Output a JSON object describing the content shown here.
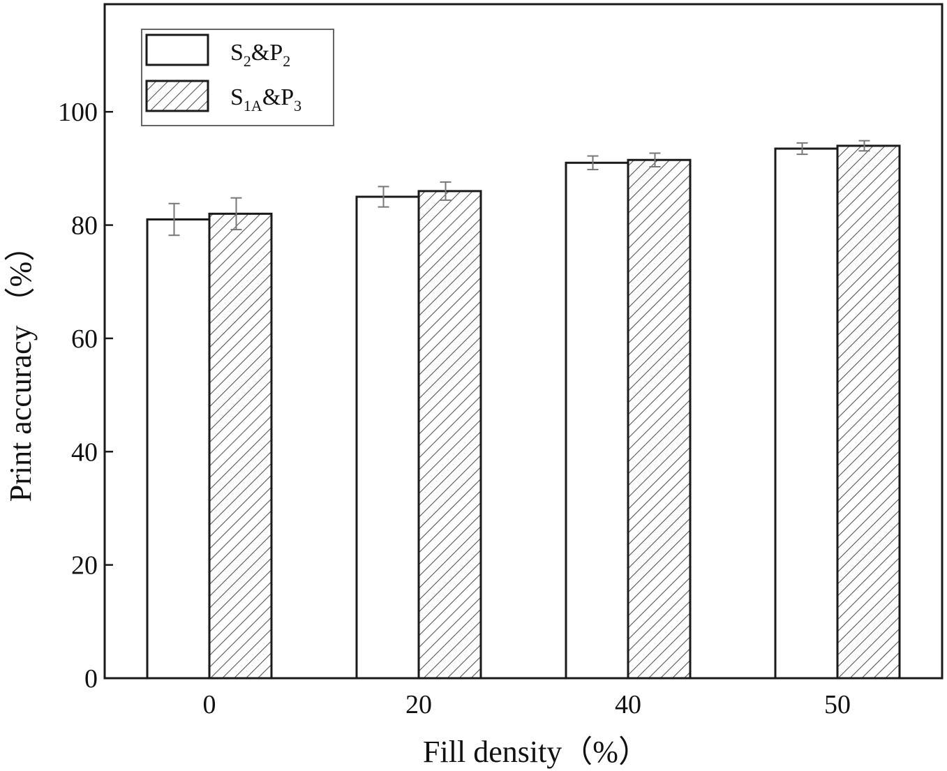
{
  "chart_data": {
    "type": "bar",
    "xlabel": "Fill density（%）",
    "ylabel": "Print accuracy （%）",
    "categories": [
      "0",
      "20",
      "40",
      "50"
    ],
    "ylim": [
      0,
      119
    ],
    "yticks": [
      0,
      20,
      40,
      60,
      80,
      100
    ],
    "ytick_labels": [
      "0",
      "20",
      "40",
      "60",
      "80",
      "100"
    ],
    "grid": false,
    "legend_position": "top-left",
    "series": [
      {
        "name": "S2&P2",
        "legend_main": [
          "S",
          "&P"
        ],
        "legend_subs": [
          "2",
          "2"
        ],
        "pattern": "open",
        "values": [
          81,
          85,
          91,
          93.5
        ],
        "errors": [
          2.8,
          1.8,
          1.2,
          1.0
        ]
      },
      {
        "name": "S1A&P3",
        "legend_main": [
          "S",
          "&P"
        ],
        "legend_subs": [
          "1A",
          "3"
        ],
        "pattern": "hatched",
        "values": [
          82,
          86,
          91.5,
          94
        ],
        "errors": [
          2.8,
          1.6,
          1.2,
          0.9
        ]
      }
    ],
    "colors": {
      "bar_stroke": "#1a1a1a",
      "bar_fill": "#ffffff",
      "hatch": "#555555",
      "error_bar": "#777777"
    }
  }
}
